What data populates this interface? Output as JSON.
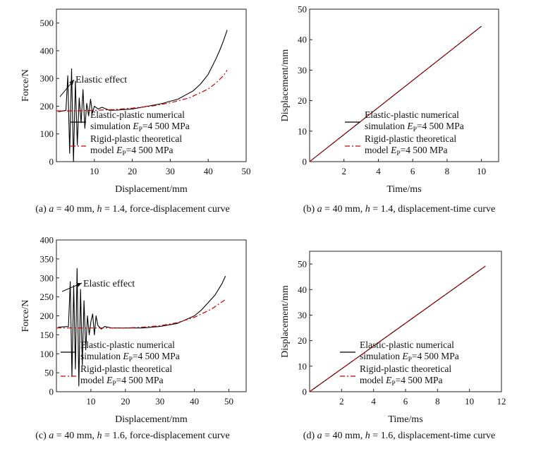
{
  "colors": {
    "numerical": "#000000",
    "theoretical": "#cc0000",
    "axis": "#222222"
  },
  "legend": {
    "numerical_line1": "Elastic-plastic numerical",
    "numerical_line2_pre": "simulation ",
    "theoretical_line1": "Rigid-plastic theoretical",
    "theoretical_line2_pre": "model ",
    "e_symbol": "E",
    "e_sub": "P",
    "e_value": "=4 500 MPa"
  },
  "chart_data": [
    {
      "id": "a",
      "type": "line",
      "xlabel": "Displacement/mm",
      "ylabel": "Force/N",
      "xlim": [
        0,
        50
      ],
      "ylim": [
        0,
        550
      ],
      "xticks": [
        10,
        20,
        30,
        40,
        50
      ],
      "yticks": [
        0,
        100,
        200,
        300,
        400,
        500
      ],
      "annotation": "Elastic effect",
      "caption": {
        "prefix": "(a) ",
        "a_sym": "a",
        "a_val": " = 40 mm, ",
        "h_sym": "h",
        "h_val": " = 1.4, force-displacement curve"
      },
      "series": [
        {
          "name": "Elastic-plastic numerical simulation E_P =4 500 MPa",
          "style": "solid",
          "x": [
            0.5,
            2.5,
            3.0,
            3.5,
            4.0,
            4.5,
            5.0,
            5.5,
            6.0,
            6.5,
            7.0,
            7.5,
            8.0,
            8.5,
            9.0,
            9.5,
            10.0,
            11.0,
            12.0,
            14.0,
            16.0,
            18.0,
            20.0,
            22.0,
            24.0,
            26.0,
            28.0,
            30.0,
            32.0,
            34.0,
            36.0,
            38.0,
            40.0,
            42.0,
            43.0,
            44.0,
            45.0
          ],
          "y": [
            180,
            185,
            310,
            30,
            335,
            0,
            290,
            60,
            230,
            140,
            260,
            120,
            210,
            165,
            225,
            175,
            200,
            190,
            196,
            185,
            186,
            188,
            190,
            195,
            200,
            205,
            210,
            218,
            225,
            240,
            255,
            280,
            315,
            370,
            400,
            435,
            475
          ]
        },
        {
          "name": "Rigid-plastic theoretical model E_P =4 500 MPa",
          "style": "dashdot",
          "x": [
            0,
            5,
            10,
            15,
            20,
            25,
            30,
            35,
            40,
            42,
            44,
            45
          ],
          "y": [
            183,
            183,
            185,
            188,
            193,
            200,
            212,
            230,
            262,
            283,
            310,
            330
          ]
        }
      ]
    },
    {
      "id": "b",
      "type": "line",
      "xlabel": "Time/ms",
      "ylabel": "Displacement/mm",
      "xlim": [
        0,
        11
      ],
      "ylim": [
        0,
        50
      ],
      "xticks": [
        2,
        4,
        6,
        8,
        10
      ],
      "yticks": [
        0,
        10,
        20,
        30,
        40,
        50
      ],
      "caption": {
        "prefix": "(b) ",
        "a_sym": "a",
        "a_val": " = 40 mm, ",
        "h_sym": "h",
        "h_val": " = 1.4, displacement-time curve"
      },
      "series": [
        {
          "name": "Elastic-plastic numerical simulation E_P =4 500 MPa",
          "style": "solid",
          "x": [
            0,
            5,
            10
          ],
          "y": [
            0,
            22.2,
            44.4
          ]
        },
        {
          "name": "Rigid-plastic theoretical model E_P =4 500 MPa",
          "style": "dashdot",
          "x": [
            0,
            5,
            10
          ],
          "y": [
            0,
            22.2,
            44.4
          ]
        }
      ]
    },
    {
      "id": "c",
      "type": "line",
      "xlabel": "Displacement/mm",
      "ylabel": "Force/N",
      "xlim": [
        0,
        55
      ],
      "ylim": [
        0,
        400
      ],
      "xticks": [
        10,
        20,
        30,
        40,
        50
      ],
      "yticks": [
        0,
        50,
        100,
        150,
        200,
        250,
        300,
        350,
        400
      ],
      "annotation": "Elastic effect",
      "caption": {
        "prefix": "(c) ",
        "a_sym": "a",
        "a_val": " = 40 mm, ",
        "h_sym": "h",
        "h_val": " = 1.6, force-displacement curve"
      },
      "series": [
        {
          "name": "Elastic-plastic numerical simulation E_P =4 500 MPa",
          "style": "solid",
          "x": [
            0.5,
            3.5,
            4.0,
            4.5,
            5.0,
            5.5,
            6.0,
            6.5,
            7.0,
            7.5,
            8.0,
            8.5,
            9.0,
            9.5,
            10.0,
            10.5,
            11.0,
            11.5,
            12.0,
            13.0,
            14.0,
            16.0,
            18.0,
            20.0,
            25.0,
            30.0,
            35.0,
            40.0,
            42.0,
            44.0,
            46.0,
            48.0,
            49.0
          ],
          "y": [
            170,
            172,
            290,
            40,
            280,
            60,
            325,
            15,
            270,
            70,
            240,
            110,
            200,
            150,
            185,
            205,
            150,
            200,
            175,
            165,
            172,
            168,
            168,
            168,
            168,
            172,
            180,
            200,
            215,
            235,
            255,
            285,
            305
          ]
        },
        {
          "name": "Rigid-plastic theoretical model E_P =4 500 MPa",
          "style": "dashdot",
          "x": [
            0,
            5,
            10,
            15,
            20,
            25,
            30,
            35,
            40,
            45,
            49
          ],
          "y": [
            168,
            168,
            168,
            168,
            168,
            170,
            174,
            182,
            196,
            218,
            243
          ]
        }
      ]
    },
    {
      "id": "d",
      "type": "line",
      "xlabel": "Time/ms",
      "ylabel": "Displacement/mm",
      "xlim": [
        0,
        12
      ],
      "ylim": [
        0,
        55
      ],
      "xticks": [
        2,
        4,
        6,
        8,
        10,
        12
      ],
      "yticks": [
        0,
        10,
        20,
        30,
        40,
        50
      ],
      "caption": {
        "prefix": "(d) ",
        "a_sym": "a",
        "a_val": " = 40 mm, ",
        "h_sym": "h",
        "h_val": " = 1.6, displacement-time curve"
      },
      "series": [
        {
          "name": "Elastic-plastic numerical simulation E_P =4 500 MPa",
          "style": "solid",
          "x": [
            0,
            5.5,
            11
          ],
          "y": [
            0,
            24.6,
            49.2
          ]
        },
        {
          "name": "Rigid-plastic theoretical model E_P =4 500 MPa",
          "style": "dashdot",
          "x": [
            0,
            5.5,
            11
          ],
          "y": [
            0,
            24.6,
            49.2
          ]
        }
      ]
    }
  ]
}
